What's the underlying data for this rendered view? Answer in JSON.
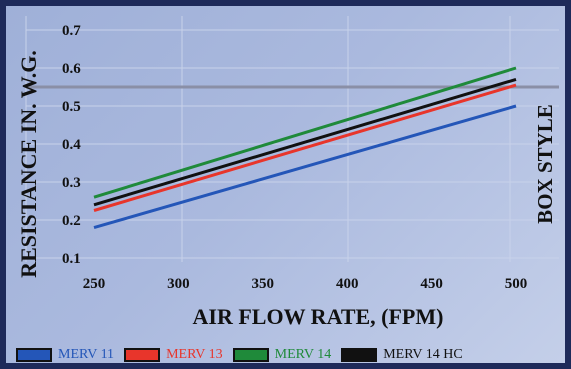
{
  "chart_data": {
    "type": "line",
    "xlabel": "AIR FLOW RATE, (FPM)",
    "ylabel": "RESISTANCE IN. W.G.",
    "side_label": "BOX STYLE",
    "xlim": [
      250,
      500
    ],
    "ylim": [
      0.1,
      0.7
    ],
    "x_ticks": [
      250,
      300,
      350,
      400,
      450,
      500
    ],
    "y_ticks": [
      "0.1",
      "0.2",
      "0.3",
      "0.4",
      "0.5",
      "0.6",
      "0.7"
    ],
    "reference_line_y": 0.55,
    "series": [
      {
        "name": "MERV 11",
        "color": "#2456b8",
        "x": [
          250,
          500
        ],
        "y": [
          0.18,
          0.5
        ]
      },
      {
        "name": "MERV 13",
        "color": "#e8352b",
        "x": [
          250,
          500
        ],
        "y": [
          0.225,
          0.555
        ]
      },
      {
        "name": "MERV 14",
        "color": "#1f8a3a",
        "x": [
          250,
          500
        ],
        "y": [
          0.26,
          0.6
        ]
      },
      {
        "name": "MERV 14 HC",
        "color": "#111111",
        "x": [
          250,
          500
        ],
        "y": [
          0.24,
          0.57
        ]
      }
    ]
  }
}
